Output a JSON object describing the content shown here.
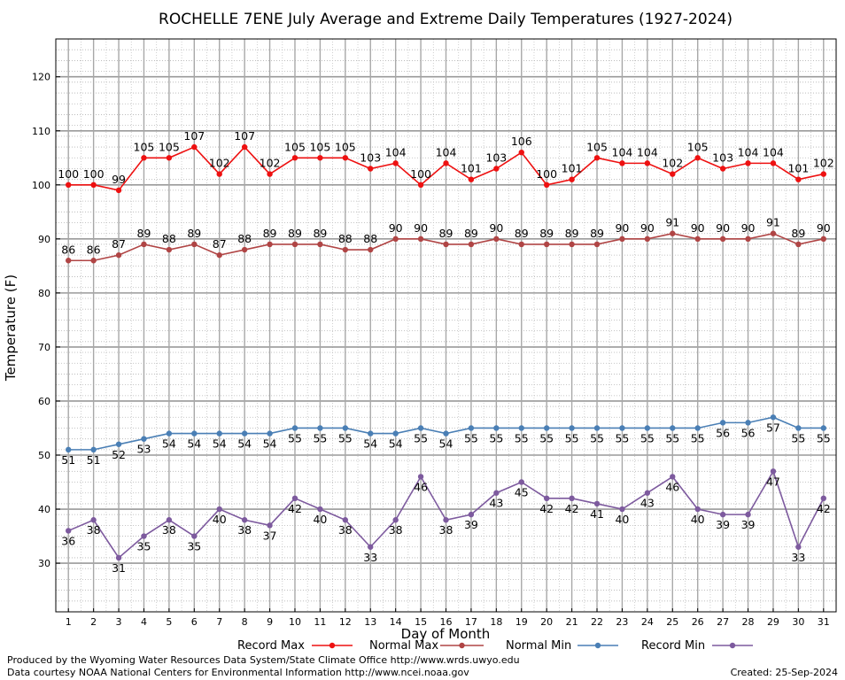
{
  "chart_data": {
    "type": "line",
    "title": "ROCHELLE 7ENE July Average and Extreme Daily Temperatures (1927-2024)",
    "xlabel": "Day of Month",
    "ylabel": "Temperature (F)",
    "x": [
      1,
      2,
      3,
      4,
      5,
      6,
      7,
      8,
      9,
      10,
      11,
      12,
      13,
      14,
      15,
      16,
      17,
      18,
      19,
      20,
      21,
      22,
      23,
      24,
      25,
      26,
      27,
      28,
      29,
      30,
      31
    ],
    "xlim": [
      0.5,
      31.5
    ],
    "ylim": [
      21,
      127
    ],
    "yticks": [
      30,
      40,
      50,
      60,
      70,
      80,
      90,
      100,
      110,
      120
    ],
    "grid": true,
    "legend_position": "bottom",
    "series": [
      {
        "name": "Record Max",
        "color": "#ee1111",
        "label_position": "above",
        "values": [
          100,
          100,
          99,
          105,
          105,
          107,
          102,
          107,
          102,
          105,
          105,
          105,
          103,
          104,
          100,
          104,
          101,
          103,
          106,
          100,
          101,
          105,
          104,
          104,
          102,
          105,
          103,
          104,
          104,
          101,
          102
        ]
      },
      {
        "name": "Normal Max",
        "color": "#b04545",
        "label_position": "above",
        "values": [
          86,
          86,
          87,
          89,
          88,
          89,
          87,
          88,
          89,
          89,
          89,
          88,
          88,
          90,
          90,
          89,
          89,
          90,
          89,
          89,
          89,
          89,
          90,
          90,
          91,
          90,
          90,
          90,
          91,
          89,
          90
        ]
      },
      {
        "name": "Normal Min",
        "color": "#4a7fb5",
        "label_position": "below",
        "values": [
          51,
          51,
          52,
          53,
          54,
          54,
          54,
          54,
          54,
          55,
          55,
          55,
          54,
          54,
          55,
          54,
          55,
          55,
          55,
          55,
          55,
          55,
          55,
          55,
          55,
          55,
          56,
          56,
          57,
          55,
          55
        ]
      },
      {
        "name": "Record Min",
        "color": "#7d5a9e",
        "label_position": "below",
        "values": [
          36,
          38,
          31,
          35,
          38,
          35,
          40,
          38,
          37,
          42,
          40,
          38,
          33,
          38,
          46,
          38,
          39,
          43,
          45,
          42,
          42,
          41,
          40,
          43,
          46,
          40,
          39,
          39,
          47,
          33,
          42
        ]
      }
    ]
  },
  "footer": {
    "produced_by": "Produced by the Wyoming Water Resources Data System/State Climate Office http://www.wrds.uwyo.edu",
    "courtesy": "Data courtesy NOAA National Centers for Environmental Information http://www.ncei.noaa.gov",
    "created": "Created:  25-Sep-2024"
  }
}
